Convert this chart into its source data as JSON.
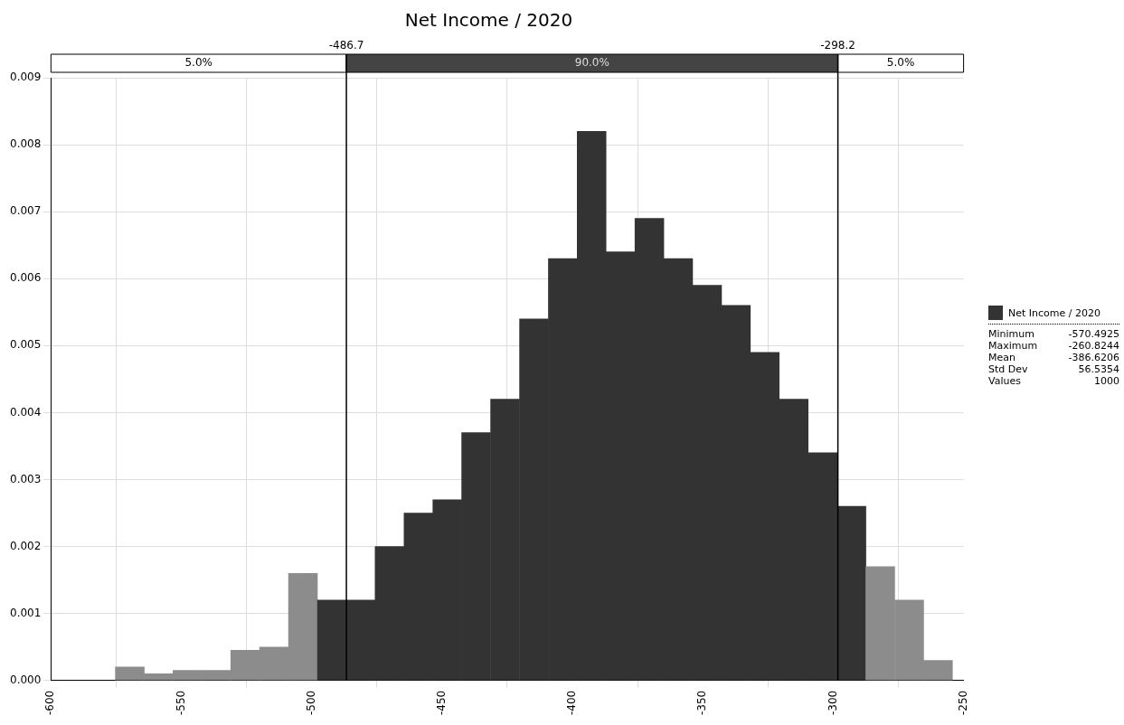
{
  "chart_data": {
    "type": "histogram",
    "title": "Net Income / 2020",
    "bins": [
      -575.3,
      -564.2,
      -553.2,
      -542.1,
      -531.0,
      -520.0,
      -508.9,
      -497.8,
      -486.7,
      -475.7,
      -464.6,
      -453.5,
      -442.5,
      -431.4,
      -420.3,
      -409.2,
      -398.2,
      -387.1,
      -376.0,
      -365.0,
      -353.9,
      -342.8,
      -331.8,
      -320.7,
      -309.6,
      -298.5,
      -287.5,
      -276.4,
      -265.3,
      -254.3
    ],
    "series": [
      {
        "name": "Net Income / 2020",
        "color": "#333333",
        "values": [
          0.0002,
          0.0001,
          0.00015,
          0.00015,
          0.00045,
          0.0005,
          0.0016,
          0.0012,
          0.0012,
          0.002,
          0.0025,
          0.0027,
          0.0037,
          0.0042,
          0.0054,
          0.0063,
          0.0082,
          0.0064,
          0.0069,
          0.0063,
          0.0059,
          0.0056,
          0.0049,
          0.0042,
          0.0034,
          0.0026,
          0.0017,
          0.0012,
          0.0003
        ],
        "colors": [
          "#8c8c8c",
          "#8c8c8c",
          "#8c8c8c",
          "#8c8c8c",
          "#8c8c8c",
          "#8c8c8c",
          "#8c8c8c",
          "#333333",
          "#333333",
          "#333333",
          "#333333",
          "#333333",
          "#333333",
          "#333333",
          "#333333",
          "#333333",
          "#333333",
          "#333333",
          "#333333",
          "#333333",
          "#333333",
          "#333333",
          "#333333",
          "#333333",
          "#333333",
          "#333333",
          "#8c8c8c",
          "#8c8c8c",
          "#8c8c8c"
        ]
      }
    ],
    "xlim": [
      -600,
      -250
    ],
    "xticks": [
      -600,
      -550,
      -500,
      -450,
      -400,
      -350,
      -300,
      -250
    ],
    "ylim": [
      0,
      0.009
    ],
    "yticks": [
      {
        "value": 0,
        "label": "0.000"
      },
      {
        "value": 0.001,
        "label": "0.001"
      },
      {
        "value": 0.002,
        "label": "0.002"
      },
      {
        "value": 0.003,
        "label": "0.003"
      },
      {
        "value": 0.004,
        "label": "0.004"
      },
      {
        "value": 0.005,
        "label": "0.005"
      },
      {
        "value": 0.006,
        "label": "0.006"
      },
      {
        "value": 0.007,
        "label": "0.007"
      },
      {
        "value": 0.008,
        "label": "0.008"
      },
      {
        "value": 0.009,
        "label": "0.009"
      }
    ],
    "ref_lines": [
      {
        "axis": "x",
        "value": -486.7,
        "label": "-486.7",
        "color": "#000000"
      },
      {
        "axis": "x",
        "value": -298.2,
        "label": "-298.2",
        "color": "#000000"
      }
    ],
    "annotations": [
      "5.0%",
      "90.0%",
      "5.0%",
      "Minimum -570.4925",
      "Maximum -260.8244",
      "Mean -386.6206",
      "Std Dev 56.5354",
      "Values 1000"
    ],
    "grid": true,
    "legend": "right"
  }
}
